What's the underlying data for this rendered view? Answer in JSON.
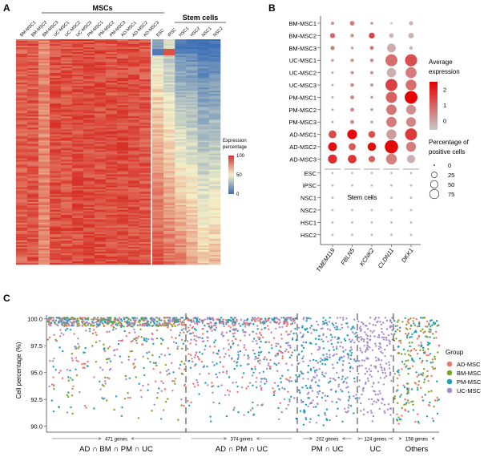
{
  "panels": {
    "a": {
      "label": "A"
    },
    "b": {
      "label": "B"
    },
    "c": {
      "label": "C"
    }
  },
  "chart_data": [
    {
      "type": "heatmap",
      "panel": "A",
      "group_labels": [
        "MSCs",
        "Stem cells"
      ],
      "columns": [
        "BM-MSC1",
        "BM-MSC2",
        "BM-MSC3",
        "UC-MSC1",
        "UC-MSC2",
        "UC-MSC3",
        "PM-MSC1",
        "PM-MSC2",
        "PM-MSC3",
        "AD-MSC1",
        "AD-MSC2",
        "AD-MSC3",
        "ESC",
        "iPSC",
        "HSC1",
        "HSC2",
        "NSC1",
        "NSC2"
      ],
      "column_groups": [
        "MSCs",
        "MSCs",
        "MSCs",
        "MSCs",
        "MSCs",
        "MSCs",
        "MSCs",
        "MSCs",
        "MSCs",
        "MSCs",
        "MSCs",
        "MSCs",
        "Stem cells",
        "Stem cells",
        "Stem cells",
        "Stem cells",
        "Stem cells",
        "Stem cells"
      ],
      "column_mean_expression": [
        88,
        90,
        78,
        92,
        91,
        93,
        94,
        93,
        92,
        93,
        92,
        90,
        80,
        72,
        55,
        50,
        35,
        40
      ],
      "legend": {
        "title": "Expression percentage",
        "ticks": [
          0,
          50,
          100
        ],
        "colors": [
          "#3b6eb5",
          "#f4f0c8",
          "#d73027"
        ]
      },
      "value_range": [
        0,
        100
      ]
    },
    {
      "type": "scatter",
      "subtype": "dotplot",
      "panel": "B",
      "genes": [
        "TMEM119",
        "FBLN5",
        "KCNK2",
        "CLDN11",
        "DKK1"
      ],
      "samples": [
        "BM-MSC1",
        "BM-MSC2",
        "BM-MSC3",
        "UC-MSC1",
        "UC-MSC2",
        "UC-MSC3",
        "PM-MSC1",
        "PM-MSC2",
        "PM-MSC3",
        "AD-MSC1",
        "AD-MSC2",
        "AD-MSC3",
        "ESC",
        "iPSC",
        "NSC1",
        "NSC2",
        "HSC1",
        "HSC2"
      ],
      "avg_expression": [
        [
          0.3,
          0.6,
          0.2,
          -0.5,
          -0.3
        ],
        [
          0.9,
          0.3,
          1.5,
          -0.4,
          -0.3
        ],
        [
          0.6,
          0.0,
          0.7,
          -0.2,
          -0.3
        ],
        [
          0.1,
          0.3,
          0.3,
          0.8,
          1.3
        ],
        [
          0.0,
          0.3,
          0.3,
          -0.2,
          0.6
        ],
        [
          0.0,
          0.4,
          0.2,
          1.5,
          0.8
        ],
        [
          0.0,
          0.4,
          0.2,
          1.0,
          2.5
        ],
        [
          0.0,
          0.4,
          0.1,
          0.7,
          0.3
        ],
        [
          0.0,
          0.4,
          0.1,
          0.6,
          0.4
        ],
        [
          1.3,
          2.3,
          1.3,
          0.1,
          1.6
        ],
        [
          2.3,
          1.1,
          2.3,
          2.4,
          0.6
        ],
        [
          1.8,
          1.7,
          1.0,
          0.5,
          -0.2
        ],
        [
          -0.6,
          -0.6,
          -0.6,
          -0.6,
          -0.6
        ],
        [
          -0.6,
          -0.6,
          -0.6,
          -0.6,
          -0.6
        ],
        [
          -0.6,
          -0.6,
          -0.6,
          -0.6,
          -0.6
        ],
        [
          -0.6,
          -0.6,
          -0.6,
          -0.6,
          -0.6
        ],
        [
          -0.6,
          -0.6,
          -0.6,
          -0.6,
          -0.6
        ],
        [
          -0.6,
          -0.6,
          -0.6,
          -0.6,
          -0.6
        ]
      ],
      "pct_positive": [
        [
          3,
          8,
          2,
          1,
          6
        ],
        [
          10,
          4,
          14,
          8,
          12
        ],
        [
          6,
          2,
          5,
          35,
          4
        ],
        [
          2,
          3,
          4,
          70,
          72
        ],
        [
          1,
          3,
          3,
          40,
          58
        ],
        [
          1,
          4,
          3,
          70,
          55
        ],
        [
          1,
          5,
          2,
          60,
          80
        ],
        [
          1,
          5,
          2,
          50,
          45
        ],
        [
          1,
          5,
          2,
          50,
          45
        ],
        [
          28,
          45,
          20,
          48,
          70
        ],
        [
          35,
          22,
          32,
          88,
          45
        ],
        [
          38,
          33,
          18,
          55,
          30
        ],
        [
          1,
          1,
          1,
          1,
          1
        ],
        [
          1,
          1,
          1,
          1,
          1
        ],
        [
          1,
          1,
          1,
          1,
          1
        ],
        [
          1,
          1,
          1,
          1,
          1
        ],
        [
          1,
          1,
          1,
          1,
          1
        ],
        [
          1,
          1,
          1,
          1,
          1
        ]
      ],
      "annotation": "Stem cells",
      "color_legend": {
        "title": "Average expression",
        "ticks": [
          0,
          1,
          2
        ],
        "range": [
          -0.6,
          2.5
        ],
        "colors": [
          "#c8c8c8",
          "#e60000"
        ]
      },
      "size_legend": {
        "title": "Percentage of positive cells",
        "ticks": [
          0,
          25,
          50,
          75
        ]
      }
    },
    {
      "type": "scatter",
      "panel": "C",
      "ylabel": "Cell percentage (%)",
      "ylim": [
        89.6,
        100.2
      ],
      "yticks": [
        "100.0",
        "97.5",
        "95.0",
        "92.5",
        "90.0"
      ],
      "ytick_values": [
        100.0,
        97.5,
        95.0,
        92.5,
        90.0
      ],
      "legend": {
        "title": "Group",
        "placement": "right",
        "entries": [
          {
            "name": "AD-MSC",
            "color": "#f0776d"
          },
          {
            "name": "BM-MSC",
            "color": "#7ca423"
          },
          {
            "name": "PM-MSC",
            "color": "#1a9fbd"
          },
          {
            "name": "UC-MSC",
            "color": "#a88ad0"
          }
        ]
      },
      "sections": [
        {
          "label": "AD ∩ BM ∩ PM ∩ UC",
          "count_label": "471 genes",
          "genes": 471,
          "groups": [
            "AD-MSC",
            "BM-MSC",
            "PM-MSC",
            "UC-MSC"
          ],
          "min_value": 90.0
        },
        {
          "label": "AD ∩ PM ∩ UC",
          "count_label": "374 genes",
          "genes": 374,
          "groups": [
            "AD-MSC",
            "PM-MSC",
            "UC-MSC"
          ],
          "min_value": 90.0
        },
        {
          "label": "PM ∩ UC",
          "count_label": "202 genes",
          "genes": 202,
          "groups": [
            "PM-MSC",
            "UC-MSC"
          ],
          "min_value": 90.0
        },
        {
          "label": "UC",
          "count_label": "124 genes",
          "genes": 124,
          "groups": [
            "UC-MSC"
          ],
          "min_value": 90.0
        },
        {
          "label": "Others",
          "count_label": "158 genes",
          "genes": 158,
          "groups": [
            "AD-MSC",
            "PM-MSC",
            "BM-MSC"
          ],
          "min_value": 90.0
        }
      ]
    }
  ]
}
